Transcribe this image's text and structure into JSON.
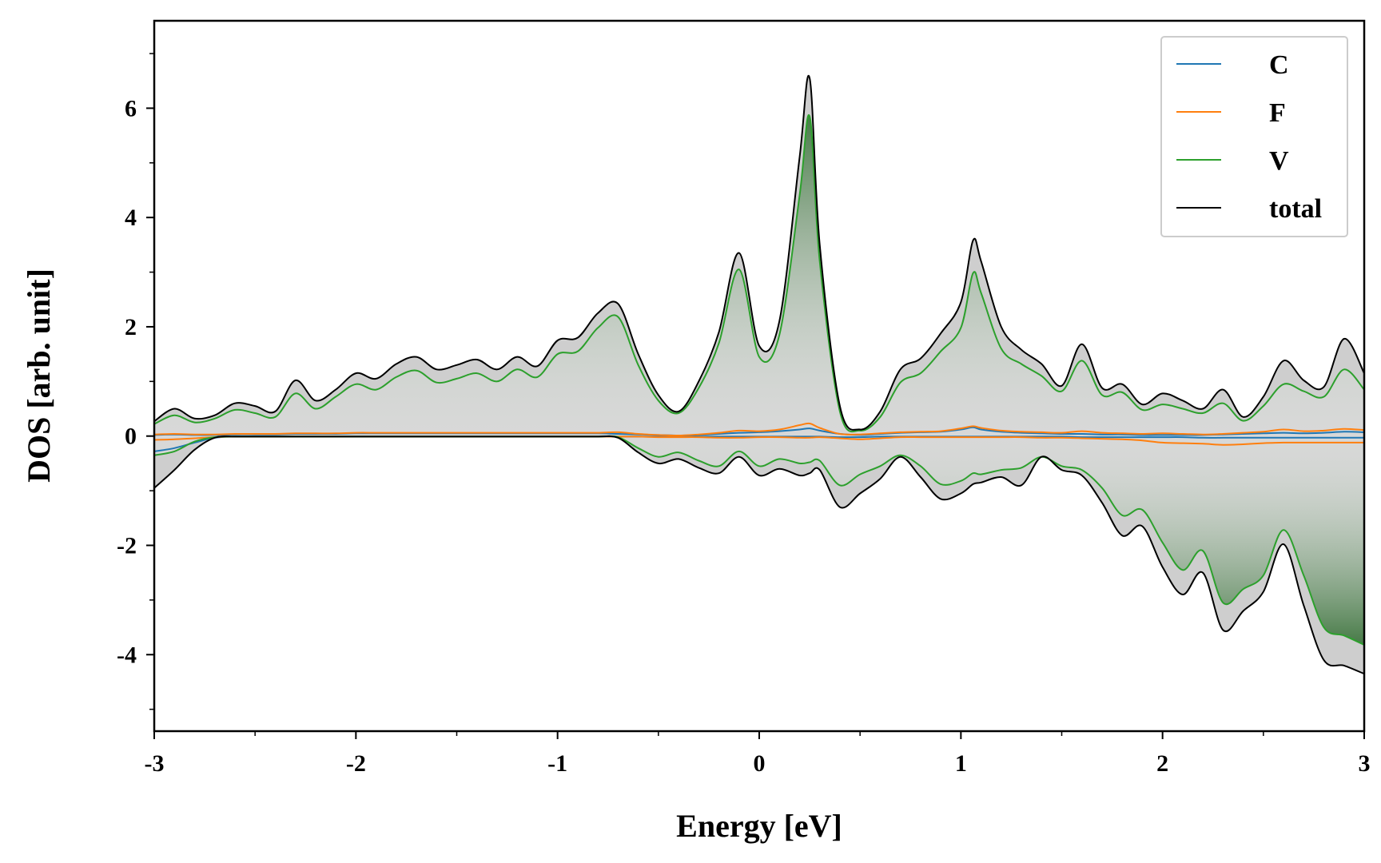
{
  "chart_data": {
    "type": "line",
    "title": "",
    "xlabel": "Energy [eV]",
    "ylabel": "DOS [arb. unit]",
    "xlim": [
      -3,
      3
    ],
    "ylim": [
      -5.4,
      7.6
    ],
    "xticks": [
      -3,
      -2,
      -1,
      0,
      1,
      2,
      3
    ],
    "xtick_labels": [
      "-3",
      "-2",
      "-1",
      "0",
      "1",
      "2",
      "3"
    ],
    "yticks": [
      -4,
      -2,
      0,
      2,
      4,
      6
    ],
    "ytick_labels": [
      "-4",
      "-2",
      "0",
      "2",
      "4",
      "6"
    ],
    "grid": false,
    "legend_position": "top-right",
    "fill": "gradient fill under spin-up and spin-down total and V curves (grey, green)",
    "x": [
      -3.0,
      -2.9,
      -2.8,
      -2.7,
      -2.6,
      -2.5,
      -2.4,
      -2.3,
      -2.2,
      -2.1,
      -2.0,
      -1.9,
      -1.8,
      -1.7,
      -1.6,
      -1.5,
      -1.4,
      -1.3,
      -1.2,
      -1.1,
      -1.0,
      -0.9,
      -0.8,
      -0.7,
      -0.6,
      -0.5,
      -0.4,
      -0.3,
      -0.2,
      -0.1,
      0.0,
      0.1,
      0.2,
      0.25,
      0.3,
      0.4,
      0.5,
      0.6,
      0.7,
      0.8,
      0.9,
      1.0,
      1.06,
      1.1,
      1.2,
      1.3,
      1.4,
      1.5,
      1.6,
      1.7,
      1.8,
      1.9,
      2.0,
      2.1,
      2.2,
      2.3,
      2.4,
      2.5,
      2.6,
      2.7,
      2.8,
      2.9,
      3.0
    ],
    "series": [
      {
        "name": "C",
        "color": "#1f77b4",
        "up": [
          0.02,
          0.03,
          0.02,
          0.02,
          0.03,
          0.03,
          0.03,
          0.04,
          0.04,
          0.04,
          0.05,
          0.05,
          0.05,
          0.05,
          0.05,
          0.05,
          0.05,
          0.05,
          0.05,
          0.05,
          0.05,
          0.05,
          0.05,
          0.04,
          0.03,
          0.02,
          0.01,
          0.02,
          0.04,
          0.06,
          0.07,
          0.09,
          0.12,
          0.14,
          0.1,
          0.04,
          0.02,
          0.04,
          0.06,
          0.07,
          0.08,
          0.12,
          0.16,
          0.12,
          0.08,
          0.06,
          0.05,
          0.04,
          0.04,
          0.03,
          0.03,
          0.02,
          0.02,
          0.02,
          0.02,
          0.03,
          0.04,
          0.05,
          0.06,
          0.05,
          0.06,
          0.08,
          0.07
        ],
        "down": [
          -0.28,
          -0.22,
          -0.12,
          -0.03,
          -0.01,
          -0.01,
          -0.01,
          -0.01,
          -0.01,
          -0.01,
          -0.01,
          -0.01,
          -0.01,
          -0.01,
          -0.01,
          -0.01,
          -0.01,
          -0.01,
          -0.01,
          -0.01,
          -0.01,
          -0.01,
          -0.01,
          -0.01,
          -0.01,
          -0.01,
          -0.01,
          -0.01,
          -0.01,
          -0.01,
          -0.01,
          -0.01,
          -0.01,
          -0.01,
          -0.01,
          -0.02,
          -0.02,
          -0.01,
          -0.01,
          -0.01,
          -0.01,
          -0.01,
          -0.01,
          -0.01,
          -0.01,
          -0.01,
          -0.01,
          -0.01,
          -0.02,
          -0.02,
          -0.02,
          -0.02,
          -0.02,
          -0.02,
          -0.03,
          -0.03,
          -0.03,
          -0.03,
          -0.03,
          -0.03,
          -0.03,
          -0.03,
          -0.03
        ]
      },
      {
        "name": "F",
        "color": "#ff7f0e",
        "up": [
          0.03,
          0.04,
          0.03,
          0.03,
          0.04,
          0.04,
          0.04,
          0.05,
          0.05,
          0.05,
          0.06,
          0.06,
          0.06,
          0.06,
          0.06,
          0.06,
          0.06,
          0.06,
          0.06,
          0.06,
          0.06,
          0.06,
          0.06,
          0.07,
          0.04,
          0.02,
          0.01,
          0.03,
          0.06,
          0.1,
          0.09,
          0.12,
          0.2,
          0.23,
          0.15,
          0.04,
          0.03,
          0.05,
          0.07,
          0.08,
          0.09,
          0.14,
          0.18,
          0.15,
          0.1,
          0.08,
          0.07,
          0.06,
          0.09,
          0.06,
          0.05,
          0.04,
          0.05,
          0.04,
          0.03,
          0.04,
          0.06,
          0.08,
          0.12,
          0.09,
          0.1,
          0.13,
          0.11
        ],
        "down": [
          -0.07,
          -0.06,
          -0.04,
          -0.02,
          -0.01,
          -0.01,
          -0.01,
          -0.01,
          -0.01,
          -0.01,
          -0.01,
          -0.01,
          -0.01,
          -0.01,
          -0.01,
          -0.01,
          -0.01,
          -0.01,
          -0.01,
          -0.01,
          -0.01,
          -0.01,
          -0.01,
          -0.01,
          -0.01,
          -0.02,
          -0.02,
          -0.02,
          -0.03,
          -0.03,
          -0.02,
          -0.02,
          -0.03,
          -0.03,
          -0.02,
          -0.04,
          -0.06,
          -0.04,
          -0.02,
          -0.02,
          -0.02,
          -0.02,
          -0.02,
          -0.02,
          -0.02,
          -0.02,
          -0.03,
          -0.03,
          -0.04,
          -0.05,
          -0.06,
          -0.08,
          -0.12,
          -0.13,
          -0.14,
          -0.16,
          -0.15,
          -0.13,
          -0.12,
          -0.12,
          -0.12,
          -0.12,
          -0.12
        ]
      },
      {
        "name": "V",
        "color": "#2ca02c",
        "up": [
          0.22,
          0.38,
          0.25,
          0.32,
          0.48,
          0.42,
          0.35,
          0.78,
          0.5,
          0.72,
          0.95,
          0.85,
          1.08,
          1.2,
          0.98,
          1.05,
          1.15,
          1.0,
          1.22,
          1.08,
          1.5,
          1.55,
          1.98,
          2.18,
          1.3,
          0.65,
          0.42,
          0.88,
          1.7,
          3.05,
          1.45,
          1.85,
          4.4,
          5.85,
          3.2,
          0.45,
          0.1,
          0.35,
          0.98,
          1.15,
          1.55,
          1.98,
          2.98,
          2.62,
          1.6,
          1.32,
          1.1,
          0.82,
          1.38,
          0.75,
          0.8,
          0.48,
          0.58,
          0.5,
          0.42,
          0.6,
          0.28,
          0.55,
          0.95,
          0.82,
          0.72,
          1.22,
          0.85
        ],
        "down": [
          -0.35,
          -0.28,
          -0.1,
          -0.02,
          -0.01,
          -0.01,
          -0.01,
          -0.01,
          -0.01,
          -0.01,
          -0.01,
          -0.01,
          -0.01,
          -0.01,
          -0.01,
          -0.01,
          -0.01,
          -0.01,
          -0.01,
          -0.01,
          -0.01,
          -0.01,
          -0.01,
          -0.02,
          -0.22,
          -0.38,
          -0.3,
          -0.45,
          -0.55,
          -0.28,
          -0.55,
          -0.42,
          -0.5,
          -0.48,
          -0.45,
          -0.9,
          -0.7,
          -0.55,
          -0.35,
          -0.55,
          -0.88,
          -0.82,
          -0.68,
          -0.7,
          -0.62,
          -0.58,
          -0.38,
          -0.55,
          -0.62,
          -0.95,
          -1.45,
          -1.35,
          -1.95,
          -2.45,
          -2.1,
          -3.05,
          -2.8,
          -2.55,
          -1.72,
          -2.55,
          -3.5,
          -3.65,
          -3.82
        ]
      },
      {
        "name": "total",
        "color": "#000000",
        "up": [
          0.27,
          0.5,
          0.32,
          0.38,
          0.6,
          0.55,
          0.45,
          1.02,
          0.65,
          0.85,
          1.15,
          1.05,
          1.32,
          1.45,
          1.22,
          1.3,
          1.4,
          1.22,
          1.45,
          1.28,
          1.75,
          1.8,
          2.25,
          2.42,
          1.5,
          0.75,
          0.45,
          1.0,
          1.9,
          3.35,
          1.65,
          2.1,
          5.1,
          6.55,
          3.5,
          0.55,
          0.12,
          0.45,
          1.22,
          1.42,
          1.88,
          2.45,
          3.58,
          3.2,
          2.0,
          1.58,
          1.32,
          0.92,
          1.68,
          0.88,
          0.95,
          0.58,
          0.78,
          0.65,
          0.5,
          0.85,
          0.35,
          0.72,
          1.38,
          1.02,
          0.9,
          1.78,
          1.15
        ],
        "down": [
          -0.95,
          -0.62,
          -0.25,
          -0.03,
          -0.01,
          -0.01,
          -0.01,
          -0.01,
          -0.01,
          -0.01,
          -0.01,
          -0.01,
          -0.01,
          -0.01,
          -0.01,
          -0.01,
          -0.01,
          -0.01,
          -0.01,
          -0.01,
          -0.01,
          -0.01,
          -0.01,
          -0.03,
          -0.3,
          -0.5,
          -0.42,
          -0.58,
          -0.68,
          -0.38,
          -0.72,
          -0.6,
          -0.72,
          -0.68,
          -0.62,
          -1.3,
          -1.05,
          -0.78,
          -0.38,
          -0.75,
          -1.15,
          -1.05,
          -0.88,
          -0.85,
          -0.75,
          -0.9,
          -0.38,
          -0.62,
          -0.72,
          -1.22,
          -1.82,
          -1.65,
          -2.4,
          -2.9,
          -2.5,
          -3.55,
          -3.2,
          -2.85,
          -1.98,
          -3.1,
          -4.1,
          -4.2,
          -4.35
        ]
      }
    ]
  }
}
